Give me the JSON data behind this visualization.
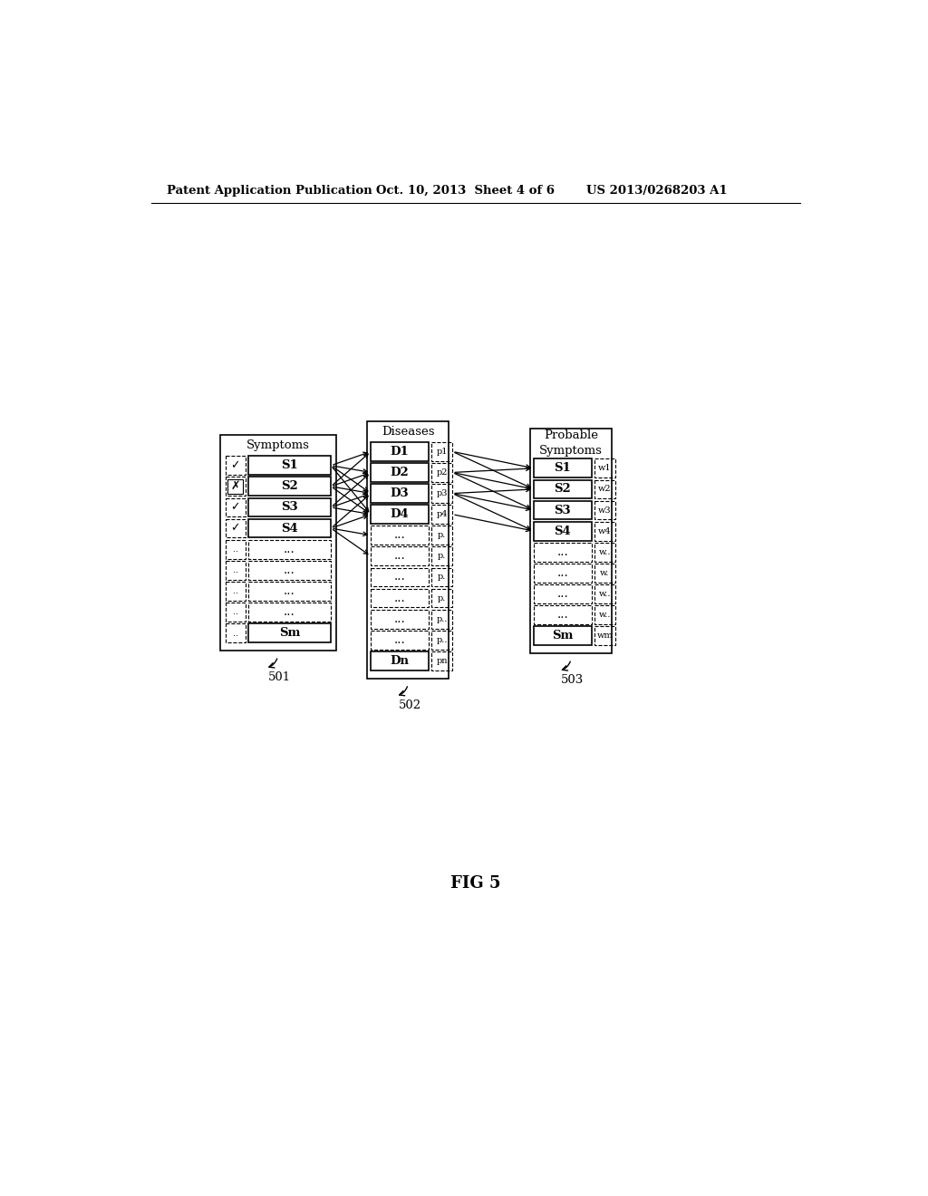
{
  "bg_color": "#ffffff",
  "header_text": "Patent Application Publication",
  "header_date": "Oct. 10, 2013  Sheet 4 of 6",
  "header_patent": "US 2013/0268203 A1",
  "fig_label": "FIG 5",
  "symptoms_title": "Symptoms",
  "symptoms_rows": [
    {
      "icon": "v",
      "label": "S1",
      "bold": true
    },
    {
      "icon": "x",
      "label": "S2",
      "bold": true
    },
    {
      "icon": "v",
      "label": "S3",
      "bold": true
    },
    {
      "icon": "v",
      "label": "S4",
      "bold": true
    },
    {
      "icon": "..",
      "label": "...",
      "bold": false
    },
    {
      "icon": "..",
      "label": "...",
      "bold": false
    },
    {
      "icon": "..",
      "label": "...",
      "bold": false
    },
    {
      "icon": "..",
      "label": "...",
      "bold": false
    },
    {
      "icon": "..",
      "label": "Sm",
      "bold": true
    }
  ],
  "symptoms_label": "501",
  "diseases_title": "Diseases",
  "diseases_rows": [
    {
      "label": "D1",
      "plabel": "p1",
      "bold": true
    },
    {
      "label": "D2",
      "plabel": "p2",
      "bold": true
    },
    {
      "label": "D3",
      "plabel": "p3",
      "bold": true
    },
    {
      "label": "D4",
      "plabel": "p4",
      "bold": true
    },
    {
      "label": "...",
      "plabel": "p.",
      "bold": false
    },
    {
      "label": "...",
      "plabel": "p.",
      "bold": false
    },
    {
      "label": "...",
      "plabel": "p.",
      "bold": false
    },
    {
      "label": "...",
      "plabel": "p.",
      "bold": false
    },
    {
      "label": "...",
      "plabel": "p..",
      "bold": false
    },
    {
      "label": "...",
      "plabel": "p..",
      "bold": false
    },
    {
      "label": "Dn",
      "plabel": "pn",
      "bold": true
    }
  ],
  "diseases_label": "502",
  "probable_title": "Probable\nSymptoms",
  "probable_rows": [
    {
      "label": "S1",
      "wlabel": "w1",
      "bold": true
    },
    {
      "label": "S2",
      "wlabel": "w2",
      "bold": true
    },
    {
      "label": "S3",
      "wlabel": "w3",
      "bold": true
    },
    {
      "label": "S4",
      "wlabel": "w4",
      "bold": true
    },
    {
      "label": "...",
      "wlabel": "w..",
      "bold": false
    },
    {
      "label": "...",
      "wlabel": "w.",
      "bold": false
    },
    {
      "label": "...",
      "wlabel": "w..",
      "bold": false
    },
    {
      "label": "...",
      "wlabel": "w..",
      "bold": false
    },
    {
      "label": "Sm",
      "wlabel": "wm",
      "bold": true
    }
  ],
  "probable_label": "503",
  "arrows_sym_to_dis": [
    [
      0,
      0
    ],
    [
      0,
      1
    ],
    [
      0,
      2
    ],
    [
      0,
      3
    ],
    [
      1,
      0
    ],
    [
      1,
      1
    ],
    [
      1,
      2
    ],
    [
      1,
      3
    ],
    [
      2,
      1
    ],
    [
      2,
      2
    ],
    [
      2,
      3
    ],
    [
      3,
      2
    ],
    [
      3,
      3
    ],
    [
      3,
      4
    ],
    [
      3,
      5
    ]
  ],
  "arrows_dis_to_prob": [
    [
      0,
      0
    ],
    [
      0,
      1
    ],
    [
      1,
      0
    ],
    [
      1,
      1
    ],
    [
      1,
      2
    ],
    [
      2,
      1
    ],
    [
      2,
      2
    ],
    [
      2,
      3
    ],
    [
      3,
      3
    ]
  ]
}
